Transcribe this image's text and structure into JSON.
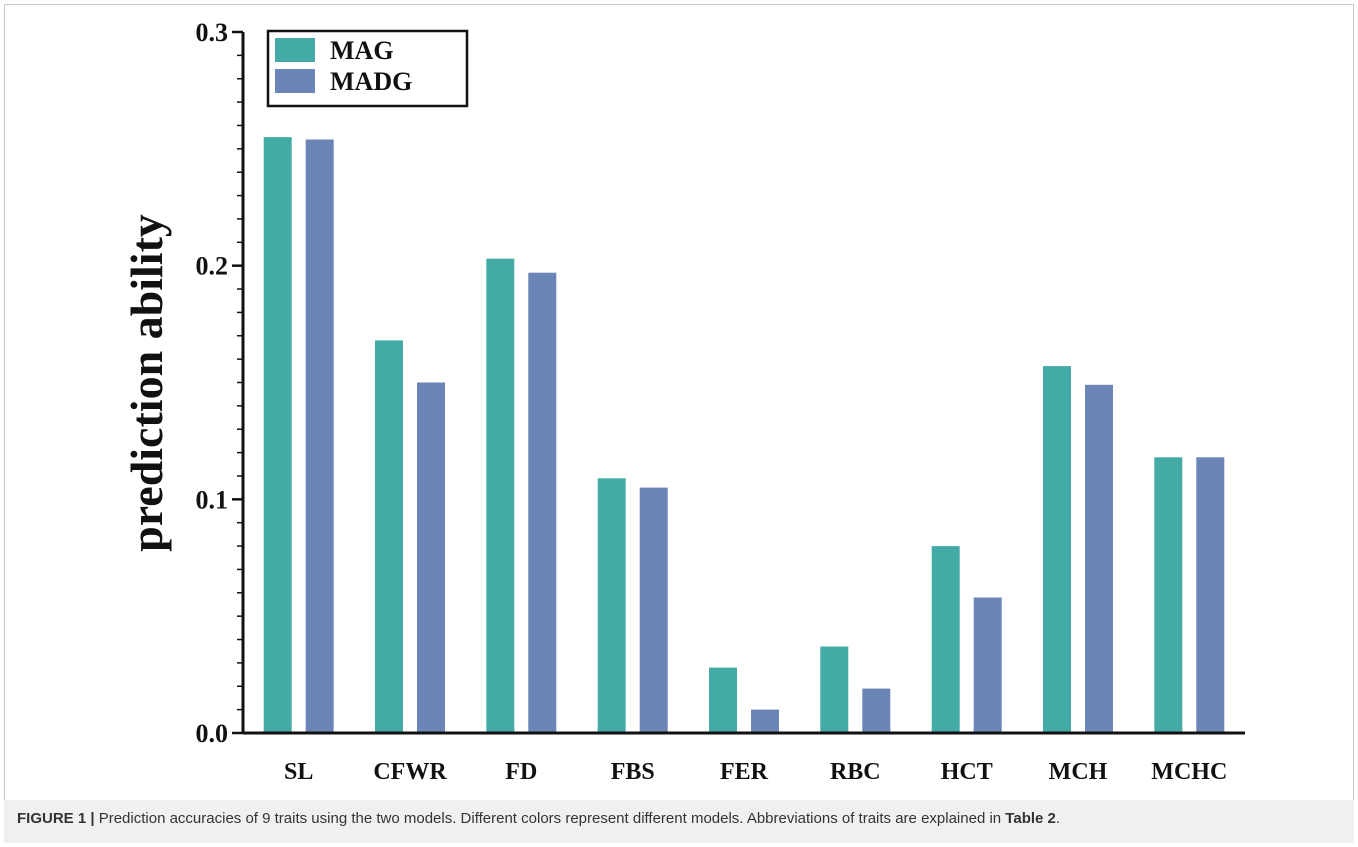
{
  "chart_data": {
    "type": "bar",
    "title": "",
    "xlabel": "",
    "ylabel": "prediction ability",
    "ylim": [
      0,
      0.3
    ],
    "yticks": [
      "0.0",
      "0.1",
      "0.2",
      "0.3"
    ],
    "ytick_values": [
      0,
      0.1,
      0.2,
      0.3
    ],
    "categories": [
      "SL",
      "CFWR",
      "FD",
      "FBS",
      "FER",
      "RBC",
      "HCT",
      "MCH",
      "MCHC"
    ],
    "series": [
      {
        "name": "MAG",
        "color": "#44aaa6",
        "values": [
          0.255,
          0.168,
          0.203,
          0.109,
          0.028,
          0.037,
          0.08,
          0.157,
          0.118
        ]
      },
      {
        "name": "MADG",
        "color": "#6b86b6",
        "values": [
          0.254,
          0.15,
          0.197,
          0.105,
          0.01,
          0.019,
          0.058,
          0.149,
          0.118
        ]
      }
    ],
    "legend_position": "top-left",
    "grid": false
  },
  "caption": {
    "figure_label": "FIGURE 1 |",
    "text_before": " Prediction accuracies of 9 traits using the two models. Different colors represent different models. Abbreviations of traits are explained in ",
    "table_ref": "Table 2",
    "text_after": "."
  }
}
